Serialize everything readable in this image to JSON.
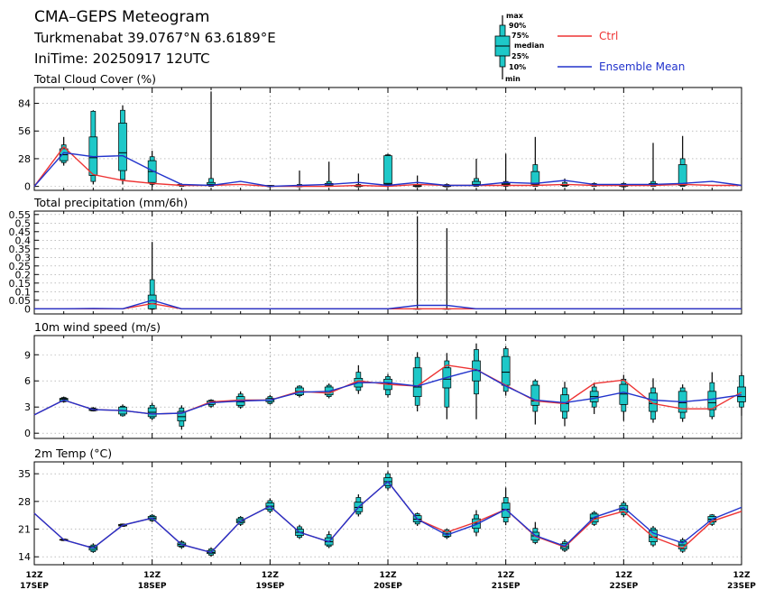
{
  "header": {
    "title": "CMA–GEPS Meteogram",
    "location": "Turkmenabat 39.0767°N 63.6189°E",
    "init_time": "IniTime: 20250917 12UTC"
  },
  "legend": {
    "box_labels": [
      "max",
      "90%",
      "75%",
      "median",
      "25%",
      "10%",
      "min"
    ],
    "ctrl_label": "Ctrl",
    "mean_label": "Ensemble Mean",
    "colors": {
      "ctrl": "#ee3333",
      "mean": "#2233cc",
      "box": "#1ec8c8",
      "grid": "#888888"
    }
  },
  "x_axis": {
    "steps_hours": 6,
    "labels": [
      {
        "hour": 0,
        "top": "12Z",
        "bottom": "17SEP"
      },
      {
        "hour": 24,
        "top": "12Z",
        "bottom": "18SEP"
      },
      {
        "hour": 48,
        "top": "12Z",
        "bottom": "19SEP"
      },
      {
        "hour": 72,
        "top": "12Z",
        "bottom": "20SEP"
      },
      {
        "hour": 96,
        "top": "12Z",
        "bottom": "21SEP"
      },
      {
        "hour": 120,
        "top": "12Z",
        "bottom": "22SEP"
      },
      {
        "hour": 144,
        "top": "12Z",
        "bottom": "23SEP"
      }
    ]
  },
  "chart_data": [
    {
      "type": "box",
      "title": "Total Cloud Cover (%)",
      "ylim": [
        -4,
        100
      ],
      "yticks": [
        0,
        28,
        56,
        84
      ],
      "x_hours": [
        0,
        6,
        12,
        18,
        24,
        30,
        36,
        42,
        48,
        54,
        60,
        66,
        72,
        78,
        84,
        90,
        96,
        102,
        108,
        114,
        120,
        126,
        132,
        138,
        144
      ],
      "ctrl": [
        0,
        40,
        12,
        6,
        3,
        1,
        1,
        2,
        0,
        0,
        0,
        1,
        0,
        2,
        1,
        1,
        1,
        1,
        2,
        1,
        1,
        1,
        2,
        1,
        1
      ],
      "mean": [
        0,
        34,
        30,
        31,
        16,
        2,
        1,
        5,
        0,
        1,
        2,
        4,
        1,
        4,
        1,
        1,
        4,
        3,
        6,
        2,
        2,
        2,
        3,
        5,
        1
      ],
      "boxes": [
        null,
        {
          "min": 21,
          "p10": 24,
          "p25": 26,
          "median": 32,
          "p75": 38,
          "p90": 42,
          "max": 50
        },
        {
          "min": 2,
          "p10": 5,
          "p25": 11,
          "median": 29,
          "p75": 50,
          "p90": 76,
          "max": 77
        },
        {
          "min": 2,
          "p10": 7,
          "p25": 16,
          "median": 34,
          "p75": 64,
          "p90": 77,
          "max": 82
        },
        {
          "min": 0,
          "p10": 2,
          "p25": 4,
          "median": 15,
          "p75": 26,
          "p90": 30,
          "max": 36
        },
        {
          "min": 0,
          "p10": 0,
          "p25": 1,
          "median": 1,
          "p75": 2,
          "p90": 2,
          "max": 3
        },
        {
          "min": 0,
          "p10": 0,
          "p25": 1,
          "median": 2,
          "p75": 4,
          "p90": 8,
          "max": 96
        },
        null,
        {
          "min": 0,
          "p10": 0,
          "p25": 0,
          "median": 0,
          "p75": 1,
          "p90": 1,
          "max": 1
        },
        {
          "min": 0,
          "p10": 0,
          "p25": 0,
          "median": 0,
          "p75": 1,
          "p90": 2,
          "max": 16
        },
        {
          "min": 0,
          "p10": 0,
          "p25": 1,
          "median": 2,
          "p75": 3,
          "p90": 5,
          "max": 25
        },
        {
          "min": 0,
          "p10": 0,
          "p25": 0,
          "median": 1,
          "p75": 1,
          "p90": 2,
          "max": 13
        },
        {
          "min": 0,
          "p10": 1,
          "p25": 2,
          "median": 3,
          "p75": 31,
          "p90": 32,
          "max": 33
        },
        {
          "min": 0,
          "p10": 0,
          "p25": 0,
          "median": 0,
          "p75": 1,
          "p90": 2,
          "max": 11
        },
        {
          "min": 0,
          "p10": 0,
          "p25": 0,
          "median": 0,
          "p75": 1,
          "p90": 2,
          "max": 3
        },
        {
          "min": 0,
          "p10": 0,
          "p25": 1,
          "median": 2,
          "p75": 5,
          "p90": 8,
          "max": 28
        },
        {
          "min": 0,
          "p10": 0,
          "p25": 1,
          "median": 2,
          "p75": 3,
          "p90": 5,
          "max": 33
        },
        {
          "min": 0,
          "p10": 0,
          "p25": 2,
          "median": 3,
          "p75": 15,
          "p90": 22,
          "max": 50
        },
        {
          "min": 0,
          "p10": 0,
          "p25": 1,
          "median": 1,
          "p75": 2,
          "p90": 4,
          "max": 8
        },
        {
          "min": 0,
          "p10": 0,
          "p25": 1,
          "median": 1,
          "p75": 2,
          "p90": 3,
          "max": 4
        },
        {
          "min": 0,
          "p10": 0,
          "p25": 0,
          "median": 1,
          "p75": 2,
          "p90": 3,
          "max": 4
        },
        {
          "min": 0,
          "p10": 0,
          "p25": 1,
          "median": 2,
          "p75": 3,
          "p90": 5,
          "max": 44
        },
        {
          "min": 0,
          "p10": 0,
          "p25": 1,
          "median": 2,
          "p75": 22,
          "p90": 28,
          "max": 51
        },
        null
      ]
    },
    {
      "type": "box",
      "title": "Total precipitation (mm/6h)",
      "ylim": [
        -0.03,
        0.57
      ],
      "yticks": [
        0,
        0.05,
        0.1,
        0.15,
        0.2,
        0.25,
        0.3,
        0.35,
        0.4,
        0.45,
        0.5,
        0.55
      ],
      "ytick_labels": [
        "0",
        "0.05",
        "0.1",
        "0.15",
        "0.2",
        "0.25",
        "0.3",
        "0.35",
        "0.4",
        "0.45",
        "0.5",
        "0.55"
      ],
      "x_hours": [
        0,
        6,
        12,
        18,
        24,
        30,
        36,
        42,
        48,
        54,
        60,
        66,
        72,
        78,
        84,
        90,
        96,
        102,
        108,
        114,
        120,
        126,
        132,
        138,
        144
      ],
      "ctrl": [
        0,
        0,
        0,
        0,
        0.03,
        0,
        0,
        0,
        0,
        0,
        0,
        0,
        0,
        0,
        0,
        0,
        0,
        0,
        0,
        0,
        0,
        0,
        0,
        0,
        0
      ],
      "mean": [
        0,
        0,
        0.002,
        0,
        0.05,
        0,
        0,
        0,
        0,
        0,
        0,
        0,
        0,
        0.02,
        0.02,
        0,
        0,
        0,
        0,
        0,
        0,
        0,
        0,
        0,
        0
      ],
      "boxes": [
        null,
        null,
        null,
        null,
        {
          "min": 0,
          "p10": 0,
          "p25": 0,
          "median": 0.03,
          "p75": 0.08,
          "p90": 0.17,
          "max": 0.39
        },
        null,
        null,
        null,
        null,
        null,
        null,
        null,
        null,
        {
          "min": 0,
          "p10": 0,
          "p25": 0,
          "median": 0,
          "p75": 0,
          "p90": 0,
          "max": 0.54
        },
        {
          "min": 0,
          "p10": 0,
          "p25": 0,
          "median": 0,
          "p75": 0,
          "p90": 0,
          "max": 0.47
        },
        null,
        null,
        null,
        null,
        null,
        null,
        null,
        null,
        null,
        null
      ]
    },
    {
      "type": "box",
      "title": "10m wind speed (m/s)",
      "ylim": [
        -0.6,
        11.2
      ],
      "yticks": [
        0,
        3,
        6,
        9
      ],
      "x_hours": [
        0,
        6,
        12,
        18,
        24,
        30,
        36,
        42,
        48,
        54,
        60,
        66,
        72,
        78,
        84,
        90,
        96,
        102,
        108,
        114,
        120,
        126,
        132,
        138,
        144
      ],
      "ctrl": [
        2.1,
        3.8,
        2.7,
        2.6,
        2.2,
        2.3,
        3.6,
        3.8,
        3.8,
        4.8,
        4.6,
        6.0,
        5.6,
        5.4,
        7.8,
        7.3,
        5.5,
        3.7,
        3.4,
        5.7,
        6.1,
        3.4,
        2.8,
        2.8,
        4.7
      ],
      "mean": [
        2.1,
        3.8,
        2.7,
        2.6,
        2.2,
        2.3,
        3.5,
        3.7,
        3.8,
        4.7,
        4.8,
        5.8,
        5.8,
        5.4,
        6.4,
        7.3,
        5.4,
        3.8,
        3.5,
        4.0,
        4.7,
        3.8,
        3.6,
        3.9,
        4.4
      ],
      "boxes": [
        null,
        {
          "min": 3.5,
          "p10": 3.6,
          "p25": 3.7,
          "median": 3.9,
          "p75": 4.0,
          "p90": 4.1,
          "max": 4.2
        },
        {
          "min": 2.5,
          "p10": 2.6,
          "p25": 2.6,
          "median": 2.7,
          "p75": 2.8,
          "p90": 2.9,
          "max": 3.0
        },
        {
          "min": 1.9,
          "p10": 2.0,
          "p25": 2.2,
          "median": 2.6,
          "p75": 3.0,
          "p90": 3.1,
          "max": 3.3
        },
        {
          "min": 1.5,
          "p10": 1.7,
          "p25": 1.9,
          "median": 2.4,
          "p75": 2.9,
          "p90": 3.2,
          "max": 3.5
        },
        {
          "min": 0.4,
          "p10": 0.8,
          "p25": 1.4,
          "median": 1.9,
          "p75": 2.5,
          "p90": 2.9,
          "max": 3.2
        },
        {
          "min": 2.9,
          "p10": 3.1,
          "p25": 3.3,
          "median": 3.5,
          "p75": 3.7,
          "p90": 3.8,
          "max": 3.9
        },
        {
          "min": 2.8,
          "p10": 3.0,
          "p25": 3.2,
          "median": 3.6,
          "p75": 4.2,
          "p90": 4.5,
          "max": 4.8
        },
        {
          "min": 3.3,
          "p10": 3.4,
          "p25": 3.6,
          "median": 3.8,
          "p75": 4.0,
          "p90": 4.2,
          "max": 4.4
        },
        {
          "min": 4.1,
          "p10": 4.3,
          "p25": 4.4,
          "median": 4.8,
          "p75": 5.2,
          "p90": 5.4,
          "max": 5.5
        },
        {
          "min": 4.0,
          "p10": 4.2,
          "p25": 4.4,
          "median": 4.8,
          "p75": 5.3,
          "p90": 5.5,
          "max": 5.7
        },
        {
          "min": 4.5,
          "p10": 4.9,
          "p25": 5.3,
          "median": 5.8,
          "p75": 6.3,
          "p90": 7.0,
          "max": 7.8
        },
        {
          "min": 4.1,
          "p10": 4.4,
          "p25": 5.0,
          "median": 5.7,
          "p75": 6.2,
          "p90": 6.5,
          "max": 6.8
        },
        {
          "min": 2.5,
          "p10": 3.2,
          "p25": 4.2,
          "median": 5.3,
          "p75": 7.5,
          "p90": 8.7,
          "max": 9.3
        },
        {
          "min": 1.6,
          "p10": 3.0,
          "p25": 5.2,
          "median": 6.2,
          "p75": 7.5,
          "p90": 8.3,
          "max": 9.2
        },
        {
          "min": 1.6,
          "p10": 4.5,
          "p25": 6.0,
          "median": 7.2,
          "p75": 8.3,
          "p90": 9.6,
          "max": 10.3
        },
        {
          "min": 4.3,
          "p10": 4.8,
          "p25": 5.5,
          "median": 7.0,
          "p75": 8.8,
          "p90": 9.7,
          "max": 10.0
        },
        {
          "min": 1.0,
          "p10": 2.5,
          "p25": 3.2,
          "median": 3.7,
          "p75": 5.5,
          "p90": 6.0,
          "max": 6.2
        },
        {
          "min": 0.8,
          "p10": 1.7,
          "p25": 2.5,
          "median": 3.4,
          "p75": 4.4,
          "p90": 5.2,
          "max": 5.9
        },
        {
          "min": 2.2,
          "p10": 3.0,
          "p25": 3.6,
          "median": 4.2,
          "p75": 4.8,
          "p90": 5.3,
          "max": 5.8
        },
        {
          "min": 1.4,
          "p10": 2.5,
          "p25": 3.3,
          "median": 4.5,
          "p75": 5.6,
          "p90": 6.2,
          "max": 6.7
        },
        {
          "min": 1.2,
          "p10": 1.6,
          "p25": 2.5,
          "median": 3.4,
          "p75": 4.6,
          "p90": 5.2,
          "max": 6.3
        },
        {
          "min": 1.3,
          "p10": 1.7,
          "p25": 2.4,
          "median": 3.5,
          "p75": 4.8,
          "p90": 5.2,
          "max": 5.6
        },
        {
          "min": 1.6,
          "p10": 1.9,
          "p25": 2.7,
          "median": 3.5,
          "p75": 4.8,
          "p90": 5.8,
          "max": 7.0
        },
        {
          "min": 2.0,
          "p10": 3.0,
          "p25": 3.6,
          "median": 4.2,
          "p75": 5.3,
          "p90": 6.6,
          "max": 7.0
        }
      ]
    },
    {
      "type": "box",
      "title": "2m Temp (°C)",
      "ylim": [
        12,
        38
      ],
      "yticks": [
        14,
        21,
        28,
        35
      ],
      "x_hours": [
        0,
        6,
        12,
        18,
        24,
        30,
        36,
        42,
        48,
        54,
        60,
        66,
        72,
        78,
        84,
        90,
        96,
        102,
        108,
        114,
        120,
        126,
        132,
        138,
        144
      ],
      "ctrl": [
        25,
        18.3,
        16.2,
        22,
        23.8,
        17.1,
        15.1,
        23,
        26.8,
        20.2,
        17.8,
        26.5,
        33,
        23.5,
        20.2,
        22.8,
        26,
        19.2,
        16.5,
        23.5,
        25.5,
        19,
        16.2,
        23,
        25.5
      ],
      "mean": [
        25,
        18.3,
        16.2,
        22,
        23.8,
        17.1,
        15.1,
        23,
        26.8,
        20.2,
        17.8,
        26.5,
        33,
        23.5,
        19.5,
        22.2,
        26,
        19.4,
        16.7,
        24,
        26.5,
        20,
        17.5,
        23.5,
        26.5
      ],
      "boxes": [
        null,
        {
          "min": 18,
          "p10": 18.1,
          "p25": 18.2,
          "median": 18.3,
          "p75": 18.4,
          "p90": 18.5,
          "max": 18.6
        },
        {
          "min": 15,
          "p10": 15.3,
          "p25": 15.7,
          "median": 16.2,
          "p75": 16.7,
          "p90": 17.0,
          "max": 17.4
        },
        {
          "min": 21.6,
          "p10": 21.7,
          "p25": 21.8,
          "median": 22,
          "p75": 22.2,
          "p90": 22.3,
          "max": 22.4
        },
        {
          "min": 22.8,
          "p10": 23.1,
          "p25": 23.4,
          "median": 23.8,
          "p75": 24.2,
          "p90": 24.5,
          "max": 24.8
        },
        {
          "min": 16,
          "p10": 16.4,
          "p25": 16.7,
          "median": 17.1,
          "p75": 17.5,
          "p90": 17.8,
          "max": 18.2
        },
        {
          "min": 14,
          "p10": 14.4,
          "p25": 14.8,
          "median": 15.1,
          "p75": 15.6,
          "p90": 16.0,
          "max": 16.4
        },
        {
          "min": 21.8,
          "p10": 22.2,
          "p25": 22.6,
          "median": 23,
          "p75": 23.6,
          "p90": 24.0,
          "max": 24.3
        },
        {
          "min": 25,
          "p10": 25.5,
          "p25": 26,
          "median": 26.8,
          "p75": 27.6,
          "p90": 28.2,
          "max": 28.8
        },
        {
          "min": 18.5,
          "p10": 18.9,
          "p25": 19.4,
          "median": 20.2,
          "p75": 21.0,
          "p90": 21.6,
          "max": 22.1
        },
        {
          "min": 16.2,
          "p10": 16.6,
          "p25": 17.0,
          "median": 17.8,
          "p75": 18.8,
          "p90": 19.6,
          "max": 20.5
        },
        {
          "min": 24.2,
          "p10": 24.8,
          "p25": 25.4,
          "median": 26.5,
          "p75": 27.8,
          "p90": 29.0,
          "max": 29.8
        },
        {
          "min": 30.8,
          "p10": 31.4,
          "p25": 32,
          "median": 33,
          "p75": 34,
          "p90": 35,
          "max": 35.6
        },
        {
          "min": 21.8,
          "p10": 22.3,
          "p25": 22.8,
          "median": 23.5,
          "p75": 24.4,
          "p90": 24.9,
          "max": 25.2
        },
        {
          "min": 18.5,
          "p10": 18.9,
          "p25": 19.2,
          "median": 19.8,
          "p75": 20.3,
          "p90": 20.8,
          "max": 21.2
        },
        {
          "min": 19.2,
          "p10": 20.2,
          "p25": 21.2,
          "median": 22.5,
          "p75": 23.6,
          "p90": 24.6,
          "max": 25.8
        },
        {
          "min": 22,
          "p10": 22.8,
          "p25": 24,
          "median": 26,
          "p75": 27.6,
          "p90": 29,
          "max": 31.5
        },
        {
          "min": 17.2,
          "p10": 17.6,
          "p25": 18.2,
          "median": 19.3,
          "p75": 20.2,
          "p90": 21.2,
          "max": 22.8
        },
        {
          "min": 15.2,
          "p10": 15.6,
          "p25": 16.0,
          "median": 16.5,
          "p75": 17.3,
          "p90": 17.8,
          "max": 18.4
        },
        {
          "min": 21.8,
          "p10": 22.2,
          "p25": 22.8,
          "median": 23.8,
          "p75": 24.8,
          "p90": 25.2,
          "max": 25.6
        },
        {
          "min": 24,
          "p10": 24.6,
          "p25": 25.2,
          "median": 26,
          "p75": 27,
          "p90": 27.6,
          "max": 28.2
        },
        {
          "min": 16.5,
          "p10": 17,
          "p25": 17.8,
          "median": 19,
          "p75": 20.8,
          "p90": 21.3,
          "max": 21.8
        },
        {
          "min": 15,
          "p10": 15.4,
          "p25": 16.0,
          "median": 17.0,
          "p75": 17.8,
          "p90": 18.3,
          "max": 18.8
        },
        {
          "min": 21.8,
          "p10": 22.2,
          "p25": 22.8,
          "median": 23.5,
          "p75": 24.2,
          "p90": 24.6,
          "max": 24.8
        },
        null
      ]
    }
  ]
}
